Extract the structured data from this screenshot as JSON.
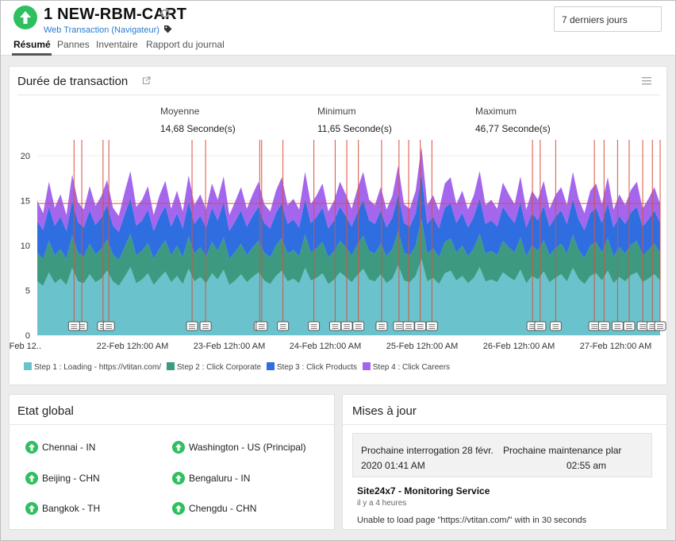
{
  "header": {
    "monitor_name": "1 NEW-RBM-CART",
    "monitor_type": "Web Transaction (Navigateur)",
    "period": "7 derniers jours",
    "tabs": [
      {
        "label": "Résumé",
        "active": true
      },
      {
        "label": "Pannes",
        "active": false
      },
      {
        "label": "Inventaire",
        "active": false
      },
      {
        "label": "Rapport du journal",
        "active": false
      }
    ],
    "status_color": "#2fbf5f"
  },
  "transaction_panel": {
    "title": "Durée de transaction",
    "stats": [
      {
        "label": "Moyenne",
        "value": "14,68 Seconde(s)"
      },
      {
        "label": "Minimum",
        "value": "11,65 Seconde(s)"
      },
      {
        "label": "Maximum",
        "value": "46,77 Seconde(s)"
      }
    ]
  },
  "chart_data": {
    "type": "area",
    "stacked": true,
    "y_ticks": [
      "0",
      "5",
      "10",
      "15",
      "20"
    ],
    "ylim": [
      0,
      22
    ],
    "x_tick_labels": [
      "-Feb 12..",
      "22-Feb 12h:00 AM",
      "23-Feb 12h:00 AM",
      "24-Feb 12h:00 AM",
      "25-Feb 12h:00 AM",
      "26-Feb 12h:00 AM",
      "27-Feb 12h:00 AM"
    ],
    "x_start": "21-Feb 12h:00",
    "x_span_hours": 161,
    "average_line": 14.68,
    "grid": true,
    "legend_position": "bottom",
    "series": [
      {
        "name": "Step 1 : Loading - https://vtitan.com/",
        "color": "#6ac3cc",
        "values": [
          6.0,
          5.5,
          7.0,
          5.8,
          6.3,
          5.6,
          7.5,
          6.0,
          5.8,
          6.8,
          5.9,
          6.3,
          7.2,
          6.0,
          5.5,
          6.5,
          7.6,
          5.8,
          6.2,
          6.9,
          5.6,
          6.4,
          7.1,
          5.9,
          6.6,
          5.7,
          7.4,
          6.0,
          6.5,
          5.8,
          6.9,
          6.2,
          7.3,
          5.6,
          6.1,
          6.8,
          5.9,
          6.5,
          7.0,
          6.1,
          5.7,
          6.6,
          7.2,
          6.0,
          6.3,
          5.8,
          7.5,
          6.1,
          6.4,
          6.9,
          5.7,
          6.2,
          7.0,
          6.5,
          5.9,
          6.7,
          7.4,
          6.2,
          6.0,
          6.8,
          5.8,
          6.3,
          7.8,
          6.1,
          5.9,
          6.6,
          8.5,
          6.0,
          6.4,
          5.7,
          6.9,
          7.2,
          6.1,
          6.6,
          5.8,
          6.4,
          7.6,
          6.0,
          6.2,
          5.9,
          7.0,
          6.5,
          6.1,
          7.3,
          5.8,
          6.6,
          6.2,
          7.1,
          5.9,
          6.4,
          6.8,
          6.0,
          7.5,
          6.3,
          5.7,
          6.6,
          6.9,
          6.1,
          7.2,
          5.8,
          6.5,
          6.0,
          6.7,
          7.0,
          5.9,
          6.3,
          6.8,
          6.1
        ]
      },
      {
        "name": "Step 2 : Click Corporate",
        "color": "#3d9a80",
        "values": [
          3.2,
          3.0,
          3.5,
          3.1,
          3.3,
          2.9,
          3.6,
          3.2,
          3.0,
          3.4,
          3.1,
          3.3,
          3.5,
          3.0,
          2.9,
          3.3,
          3.7,
          3.1,
          3.2,
          3.4,
          2.9,
          3.3,
          3.5,
          3.0,
          3.4,
          3.0,
          3.6,
          3.1,
          3.3,
          3.0,
          3.5,
          3.2,
          3.6,
          2.9,
          3.2,
          3.4,
          3.0,
          3.3,
          3.5,
          3.1,
          3.0,
          3.4,
          3.6,
          3.1,
          3.2,
          3.0,
          3.7,
          3.1,
          3.3,
          3.5,
          3.0,
          3.2,
          3.5,
          3.3,
          3.0,
          3.4,
          3.7,
          3.2,
          3.1,
          3.4,
          3.0,
          3.3,
          3.8,
          3.1,
          3.0,
          3.4,
          4.5,
          3.1,
          3.3,
          3.0,
          3.5,
          3.6,
          3.1,
          3.4,
          3.0,
          3.3,
          3.7,
          3.1,
          3.2,
          3.0,
          3.5,
          3.3,
          3.1,
          3.6,
          3.0,
          3.4,
          3.2,
          3.5,
          3.0,
          3.3,
          3.4,
          3.1,
          3.7,
          3.2,
          2.9,
          3.4,
          3.5,
          3.1,
          3.6,
          3.0,
          3.3,
          3.1,
          3.4,
          3.5,
          3.0,
          3.2,
          3.4,
          3.1
        ]
      },
      {
        "name": "Step 3 : Click Products",
        "color": "#2f6ee0",
        "values": [
          3.5,
          3.2,
          3.8,
          3.3,
          3.6,
          3.1,
          3.9,
          3.4,
          3.2,
          3.7,
          3.3,
          3.5,
          3.8,
          3.2,
          3.1,
          3.6,
          4.0,
          3.3,
          3.4,
          3.7,
          3.1,
          3.5,
          3.8,
          3.2,
          3.6,
          3.2,
          3.9,
          3.3,
          3.5,
          3.2,
          3.8,
          3.4,
          3.9,
          3.1,
          3.4,
          3.7,
          3.2,
          3.5,
          3.8,
          3.3,
          3.2,
          3.6,
          3.9,
          3.3,
          3.4,
          3.2,
          4.0,
          3.3,
          3.5,
          3.8,
          3.2,
          3.4,
          3.8,
          3.5,
          3.2,
          3.6,
          4.0,
          3.4,
          3.3,
          3.7,
          3.2,
          3.5,
          4.1,
          3.3,
          3.2,
          3.6,
          5.0,
          3.3,
          3.5,
          3.2,
          3.8,
          3.9,
          3.3,
          3.6,
          3.2,
          3.5,
          4.0,
          3.3,
          3.4,
          3.2,
          3.8,
          3.5,
          3.3,
          3.9,
          3.2,
          3.6,
          3.4,
          3.8,
          3.2,
          3.5,
          3.7,
          3.3,
          4.0,
          3.4,
          3.1,
          3.6,
          3.8,
          3.3,
          3.9,
          3.2,
          3.5,
          3.3,
          3.6,
          3.8,
          3.2,
          3.4,
          3.7,
          3.3
        ]
      },
      {
        "name": "Step 4 : Click Careers",
        "color": "#a566ee",
        "values": [
          2.3,
          1.9,
          2.8,
          2.0,
          2.5,
          1.8,
          2.9,
          2.2,
          2.0,
          2.7,
          2.1,
          2.4,
          2.8,
          2.0,
          1.8,
          2.5,
          3.0,
          2.1,
          2.3,
          2.6,
          1.8,
          2.4,
          2.8,
          2.0,
          2.5,
          1.9,
          2.9,
          2.1,
          2.4,
          2.0,
          2.7,
          2.3,
          2.9,
          1.8,
          2.2,
          2.6,
          2.0,
          2.4,
          2.8,
          2.1,
          1.9,
          2.5,
          2.9,
          2.1,
          2.3,
          2.0,
          3.0,
          2.1,
          2.4,
          2.7,
          1.9,
          2.2,
          2.8,
          2.4,
          2.0,
          2.6,
          3.1,
          2.3,
          2.1,
          2.6,
          2.0,
          2.4,
          3.2,
          2.1,
          2.0,
          2.5,
          3.0,
          2.1,
          2.4,
          2.0,
          2.7,
          2.9,
          2.1,
          2.5,
          2.0,
          2.4,
          3.0,
          2.1,
          2.3,
          2.0,
          2.7,
          2.4,
          2.1,
          2.9,
          2.0,
          2.5,
          2.3,
          2.8,
          2.0,
          2.4,
          2.6,
          2.1,
          3.0,
          2.3,
          1.9,
          2.5,
          2.7,
          2.1,
          2.9,
          2.0,
          2.4,
          2.1,
          2.5,
          2.8,
          2.0,
          2.3,
          2.6,
          2.1
        ]
      }
    ],
    "event_markers_hours": [
      11.5,
      17,
      18.5,
      40,
      43.5,
      57.5,
      63.5,
      71.5,
      77,
      80,
      83,
      89,
      93.5,
      96,
      99,
      102,
      128,
      134,
      144,
      146.5,
      153,
      156.5,
      159,
      161,
      9.5,
      58,
      130,
      150
    ]
  },
  "global_panel": {
    "title": "Etat global",
    "locations": [
      {
        "name": "Chennai - IN"
      },
      {
        "name": "Washington - US (Principal)"
      },
      {
        "name": "Beijing - CHN"
      },
      {
        "name": "Bengaluru - IN"
      },
      {
        "name": "Bangkok - TH"
      },
      {
        "name": "Chengdu - CHN"
      }
    ]
  },
  "updates_panel": {
    "title": "Mises à jour",
    "next_poll_line1": "Prochaine interrogation 28 févr.",
    "next_poll_line2": "2020 01:41 AM",
    "next_maint_line1": "Prochaine maintenance plar",
    "next_maint_line2": "02:55 am",
    "update_title": "Site24x7 - Monitoring Service",
    "update_time": "il y a 4 heures",
    "update_message": "Unable to load page \"https://vtitan.com/\" with in 30 seconds"
  }
}
